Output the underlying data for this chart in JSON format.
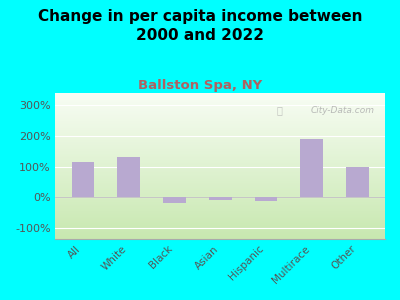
{
  "title": "Change in per capita income between\n2000 and 2022",
  "subtitle": "Ballston Spa, NY",
  "categories": [
    "All",
    "White",
    "Black",
    "Asian",
    "Hispanic",
    "Multirace",
    "Other"
  ],
  "values": [
    115,
    130,
    -20,
    -10,
    -12,
    190,
    98
  ],
  "bar_color": "#b8a9d0",
  "background_color": "#00ffff",
  "title_fontsize": 11,
  "title_fontweight": "bold",
  "subtitle_fontsize": 9.5,
  "subtitle_color": "#b06060",
  "ytick_labels": [
    "-100%",
    "0%",
    "100%",
    "200%",
    "300%"
  ],
  "yticks": [
    -100,
    0,
    100,
    200,
    300
  ],
  "ylim": [
    -135,
    340
  ],
  "ytick_fontsize": 8,
  "xtick_fontsize": 7.5,
  "watermark": "City-Data.com",
  "plot_grad_bottom": "#c8e8b0",
  "plot_grad_top": "#f8fdf4",
  "grid_color": "#dddddd"
}
